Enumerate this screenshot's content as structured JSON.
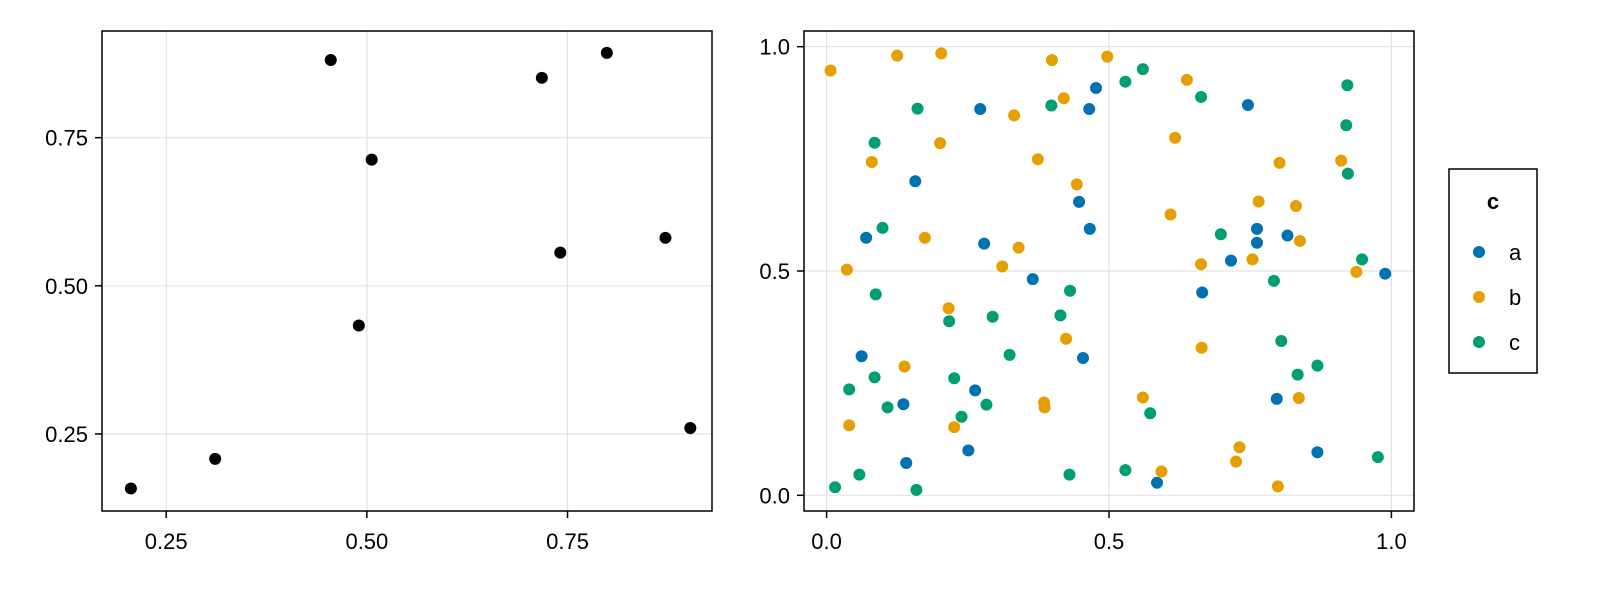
{
  "chart_data": [
    {
      "type": "scatter",
      "title": "",
      "xlabel": "",
      "ylabel": "",
      "xlim": [
        0.17,
        0.93
      ],
      "ylim": [
        0.12,
        0.93
      ],
      "xticks": [
        0.25,
        0.5,
        0.75
      ],
      "xtick_labels": [
        "0.25",
        "0.50",
        "0.75"
      ],
      "yticks": [
        0.25,
        0.5,
        0.75
      ],
      "ytick_labels": [
        "0.25",
        "0.50",
        "0.75"
      ],
      "grid": true,
      "series": [
        {
          "color": "#000000",
          "points": [
            [
              0.206,
              0.158
            ],
            [
              0.311,
              0.208
            ],
            [
              0.455,
              0.881
            ],
            [
              0.506,
              0.713
            ],
            [
              0.49,
              0.433
            ],
            [
              0.718,
              0.851
            ],
            [
              0.799,
              0.893
            ],
            [
              0.741,
              0.556
            ],
            [
              0.872,
              0.581
            ],
            [
              0.903,
              0.26
            ]
          ]
        }
      ]
    },
    {
      "type": "scatter",
      "title": "",
      "xlabel": "",
      "ylabel": "",
      "xlim": [
        -0.04,
        1.04
      ],
      "ylim": [
        -0.035,
        1.035
      ],
      "xticks": [
        0.0,
        0.5,
        1.0
      ],
      "xtick_labels": [
        "0.0",
        "0.5",
        "1.0"
      ],
      "yticks": [
        0.0,
        0.5,
        1.0
      ],
      "ytick_labels": [
        "0.0",
        "0.5",
        "1.0"
      ],
      "grid": true,
      "legend": {
        "title": "c",
        "placement": "right"
      },
      "series": [
        {
          "name": "a",
          "color": "#0072B2",
          "points": [
            [
              0.07,
              0.574
            ],
            [
              0.157,
              0.7
            ],
            [
              0.272,
              0.861
            ],
            [
              0.279,
              0.561
            ],
            [
              0.062,
              0.31
            ],
            [
              0.136,
              0.203
            ],
            [
              0.141,
              0.072
            ],
            [
              0.251,
              0.1
            ],
            [
              0.263,
              0.234
            ],
            [
              0.365,
              0.482
            ],
            [
              0.447,
              0.654
            ],
            [
              0.465,
              0.861
            ],
            [
              0.466,
              0.594
            ],
            [
              0.477,
              0.908
            ],
            [
              0.454,
              0.306
            ],
            [
              0.585,
              0.028
            ],
            [
              0.665,
              0.452
            ],
            [
              0.716,
              0.523
            ],
            [
              0.746,
              0.87
            ],
            [
              0.762,
              0.563
            ],
            [
              0.762,
              0.594
            ],
            [
              0.816,
              0.579
            ],
            [
              0.797,
              0.215
            ],
            [
              0.869,
              0.096
            ],
            [
              0.989,
              0.494
            ]
          ]
        },
        {
          "name": "b",
          "color": "#E69F00",
          "points": [
            [
              0.007,
              0.947
            ],
            [
              0.125,
              0.98
            ],
            [
              0.203,
              0.985
            ],
            [
              0.399,
              0.97
            ],
            [
              0.497,
              0.978
            ],
            [
              0.332,
              0.847
            ],
            [
              0.42,
              0.885
            ],
            [
              0.08,
              0.743
            ],
            [
              0.201,
              0.785
            ],
            [
              0.374,
              0.749
            ],
            [
              0.174,
              0.574
            ],
            [
              0.34,
              0.552
            ],
            [
              0.311,
              0.51
            ],
            [
              0.443,
              0.693
            ],
            [
              0.036,
              0.503
            ],
            [
              0.216,
              0.417
            ],
            [
              0.138,
              0.287
            ],
            [
              0.424,
              0.349
            ],
            [
              0.04,
              0.156
            ],
            [
              0.226,
              0.152
            ],
            [
              0.385,
              0.207
            ],
            [
              0.386,
              0.196
            ],
            [
              0.56,
              0.218
            ],
            [
              0.593,
              0.053
            ],
            [
              0.609,
              0.626
            ],
            [
              0.617,
              0.797
            ],
            [
              0.638,
              0.926
            ],
            [
              0.663,
              0.515
            ],
            [
              0.664,
              0.329
            ],
            [
              0.725,
              0.075
            ],
            [
              0.731,
              0.107
            ],
            [
              0.754,
              0.526
            ],
            [
              0.765,
              0.655
            ],
            [
              0.802,
              0.741
            ],
            [
              0.799,
              0.02
            ],
            [
              0.831,
              0.645
            ],
            [
              0.838,
              0.567
            ],
            [
              0.836,
              0.217
            ],
            [
              0.911,
              0.746
            ],
            [
              0.938,
              0.498
            ]
          ]
        },
        {
          "name": "c",
          "color": "#009E73",
          "points": [
            [
              0.161,
              0.862
            ],
            [
              0.085,
              0.786
            ],
            [
              0.099,
              0.596
            ],
            [
              0.087,
              0.448
            ],
            [
              0.217,
              0.388
            ],
            [
              0.226,
              0.261
            ],
            [
              0.085,
              0.263
            ],
            [
              0.04,
              0.236
            ],
            [
              0.108,
              0.196
            ],
            [
              0.058,
              0.046
            ],
            [
              0.015,
              0.018
            ],
            [
              0.159,
              0.012
            ],
            [
              0.239,
              0.175
            ],
            [
              0.283,
              0.202
            ],
            [
              0.294,
              0.398
            ],
            [
              0.324,
              0.313
            ],
            [
              0.398,
              0.869
            ],
            [
              0.414,
              0.401
            ],
            [
              0.431,
              0.456
            ],
            [
              0.43,
              0.046
            ],
            [
              0.529,
              0.922
            ],
            [
              0.529,
              0.056
            ],
            [
              0.56,
              0.95
            ],
            [
              0.573,
              0.183
            ],
            [
              0.663,
              0.888
            ],
            [
              0.698,
              0.582
            ],
            [
              0.792,
              0.478
            ],
            [
              0.805,
              0.344
            ],
            [
              0.834,
              0.269
            ],
            [
              0.869,
              0.289
            ],
            [
              0.922,
              0.914
            ],
            [
              0.92,
              0.825
            ],
            [
              0.923,
              0.717
            ],
            [
              0.948,
              0.526
            ],
            [
              0.976,
              0.085
            ]
          ]
        }
      ]
    }
  ]
}
